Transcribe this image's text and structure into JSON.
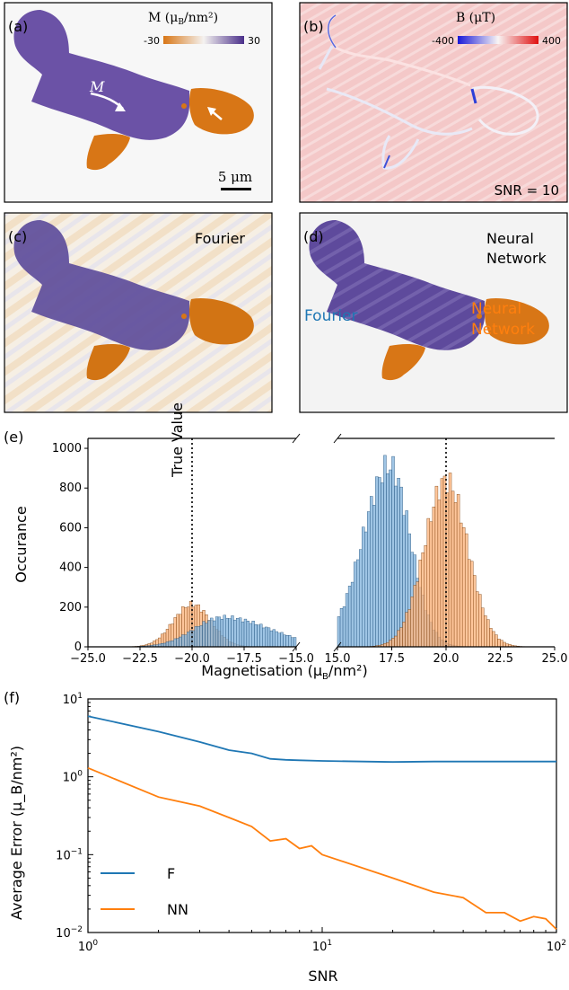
{
  "panels": {
    "a": {
      "label": "(a)",
      "colorbar_title": "M (μ",
      "colorbar_title_sub": "B",
      "colorbar_title_unit": "/nm²)",
      "cbar_min": "-30",
      "cbar_max": "30",
      "arrow_label": "M",
      "scalebar_label": "5 μm"
    },
    "b": {
      "label": "(b)",
      "colorbar_title": "B (μT)",
      "cbar_min": "-400",
      "cbar_max": "400",
      "snr_label": "SNR = 10"
    },
    "c": {
      "label": "(c)",
      "method_label": "Fourier"
    },
    "d": {
      "label": "(d)",
      "method_label_line1": "Neural",
      "method_label_line2": "Network"
    },
    "e": {
      "label": "(e)",
      "ylabel": "Occurance",
      "xlabel": "Magnetisation (μ",
      "xlabel_sub": "B",
      "xlabel_unit": "/nm²)",
      "true_value_label": "True Value",
      "fourier_label": "Fourier",
      "nn_label_line1": "Neural",
      "nn_label_line2": "Network"
    },
    "f": {
      "label": "(f)",
      "ylabel": "Average Error (μ_B/nm²)",
      "xlabel": "SNR"
    }
  },
  "colors": {
    "purple": "#6b52a6",
    "orange": "#d87616",
    "fourier_blue": "#1f77b4",
    "nn_orange": "#ff7f0e",
    "hist_blue": "#7fb2dc",
    "hist_orange": "#ffb37a",
    "hist_overlap": "#b8865f"
  },
  "chart_data": [
    {
      "type": "bar",
      "panel": "e-left",
      "x_ticks": [
        "−25.0",
        "−22.5",
        "−20.0",
        "−17.5",
        "−15.0"
      ],
      "xlim": [
        -25.0,
        -15.0
      ],
      "ylim": [
        0,
        1050
      ],
      "y_ticks": [
        "0",
        "200",
        "400",
        "600",
        "800",
        "1000"
      ],
      "true_value": -20.0,
      "series": [
        {
          "name": "Neural Network",
          "color": "#ff7f0e",
          "center": -20.0,
          "sigma": 0.9,
          "peak": 230
        },
        {
          "name": "Fourier",
          "color": "#1f77b4",
          "center": -18.5,
          "sigma": 1.4,
          "peak": 160
        }
      ]
    },
    {
      "type": "bar",
      "panel": "e-right",
      "x_ticks": [
        "15.0",
        "17.5",
        "20.0",
        "22.5",
        "25.0"
      ],
      "xlim": [
        15.0,
        25.0
      ],
      "ylim": [
        0,
        1050
      ],
      "true_value": 20.0,
      "series": [
        {
          "name": "Fourier",
          "color": "#1f77b4",
          "center": 17.4,
          "sigma": 0.95,
          "peak": 980
        },
        {
          "name": "Neural Network",
          "color": "#ff7f0e",
          "center": 20.0,
          "sigma": 1.0,
          "peak": 900
        }
      ]
    },
    {
      "type": "line",
      "panel": "f",
      "xscale": "log",
      "yscale": "log",
      "xlim": [
        1,
        100
      ],
      "ylim": [
        0.01,
        10
      ],
      "legend": "lower-left",
      "x_ticks": [
        "10^0",
        "10^1",
        "10^2"
      ],
      "y_ticks": [
        "10^-2",
        "10^-1",
        "10^0",
        "10^1"
      ],
      "series": [
        {
          "name": "F",
          "color": "#1f77b4",
          "x": [
            1,
            2,
            3,
            4,
            5,
            6,
            7,
            8,
            10,
            20,
            30,
            40,
            50,
            60,
            70,
            80,
            90,
            100
          ],
          "y": [
            6.0,
            3.8,
            2.8,
            2.2,
            2.0,
            1.7,
            1.65,
            1.63,
            1.6,
            1.55,
            1.57,
            1.57,
            1.57,
            1.57,
            1.57,
            1.57,
            1.57,
            1.57
          ]
        },
        {
          "name": "NN",
          "color": "#ff7f0e",
          "x": [
            1,
            2,
            3,
            4,
            5,
            6,
            7,
            8,
            9,
            10,
            20,
            30,
            40,
            50,
            60,
            70,
            80,
            90,
            100
          ],
          "y": [
            1.3,
            0.55,
            0.42,
            0.3,
            0.23,
            0.15,
            0.16,
            0.12,
            0.13,
            0.1,
            0.05,
            0.033,
            0.028,
            0.018,
            0.018,
            0.014,
            0.016,
            0.015,
            0.011
          ]
        }
      ]
    }
  ]
}
